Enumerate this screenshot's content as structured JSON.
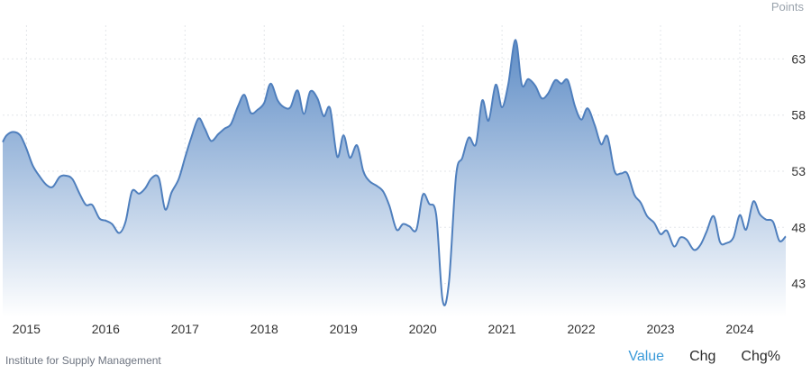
{
  "unit": "Points",
  "source": "Institute for Supply Management",
  "tabs": [
    {
      "label": "Value",
      "active": true
    },
    {
      "label": "Chg",
      "active": false
    },
    {
      "label": "Chg%",
      "active": false
    }
  ],
  "colors": {
    "line": "#4f7fbd",
    "fill_top": "#5f8dc6",
    "fill_bottom": "#ffffff",
    "grid": "#e3e6ea",
    "active_tab": "#3a9ad9"
  },
  "chart_data": {
    "type": "area",
    "title": "",
    "xlabel": "",
    "ylabel": "Points",
    "x_ticks": [
      "2015",
      "2016",
      "2017",
      "2018",
      "2019",
      "2020",
      "2021",
      "2022",
      "2023",
      "2024"
    ],
    "y_ticks": [
      43,
      48,
      53,
      58,
      63
    ],
    "xlim": [
      2014.7,
      2024.58
    ],
    "ylim": [
      40,
      66
    ],
    "grid": true,
    "series": [
      {
        "values": [
          [
            2014.7,
            55.6
          ],
          [
            2014.75,
            56.2
          ],
          [
            2014.83,
            56.5
          ],
          [
            2014.92,
            56.2
          ],
          [
            2015.0,
            55.0
          ],
          [
            2015.08,
            53.5
          ],
          [
            2015.17,
            52.5
          ],
          [
            2015.25,
            51.8
          ],
          [
            2015.33,
            51.6
          ],
          [
            2015.42,
            52.5
          ],
          [
            2015.5,
            52.6
          ],
          [
            2015.58,
            52.3
          ],
          [
            2015.67,
            51.0
          ],
          [
            2015.75,
            50.0
          ],
          [
            2015.83,
            50.0
          ],
          [
            2015.92,
            48.8
          ],
          [
            2016.0,
            48.6
          ],
          [
            2016.08,
            48.3
          ],
          [
            2016.17,
            47.5
          ],
          [
            2016.25,
            48.5
          ],
          [
            2016.33,
            51.2
          ],
          [
            2016.42,
            51.0
          ],
          [
            2016.5,
            51.5
          ],
          [
            2016.58,
            52.4
          ],
          [
            2016.67,
            52.4
          ],
          [
            2016.75,
            49.6
          ],
          [
            2016.83,
            51.1
          ],
          [
            2016.92,
            52.3
          ],
          [
            2017.0,
            54.2
          ],
          [
            2017.08,
            56.0
          ],
          [
            2017.17,
            57.7
          ],
          [
            2017.25,
            56.8
          ],
          [
            2017.33,
            55.7
          ],
          [
            2017.42,
            56.3
          ],
          [
            2017.5,
            56.8
          ],
          [
            2017.58,
            57.2
          ],
          [
            2017.67,
            58.8
          ],
          [
            2017.75,
            59.8
          ],
          [
            2017.83,
            58.2
          ],
          [
            2017.92,
            58.5
          ],
          [
            2018.0,
            59.1
          ],
          [
            2018.08,
            60.8
          ],
          [
            2018.17,
            59.3
          ],
          [
            2018.25,
            58.7
          ],
          [
            2018.33,
            58.7
          ],
          [
            2018.42,
            60.2
          ],
          [
            2018.5,
            58.1
          ],
          [
            2018.58,
            60.1
          ],
          [
            2018.67,
            59.5
          ],
          [
            2018.75,
            57.9
          ],
          [
            2018.83,
            58.6
          ],
          [
            2018.92,
            54.3
          ],
          [
            2019.0,
            56.2
          ],
          [
            2019.08,
            54.2
          ],
          [
            2019.17,
            55.3
          ],
          [
            2019.25,
            53.0
          ],
          [
            2019.33,
            52.1
          ],
          [
            2019.42,
            51.7
          ],
          [
            2019.5,
            51.2
          ],
          [
            2019.58,
            49.9
          ],
          [
            2019.67,
            47.8
          ],
          [
            2019.75,
            48.3
          ],
          [
            2019.83,
            48.1
          ],
          [
            2019.92,
            47.8
          ],
          [
            2020.0,
            50.9
          ],
          [
            2020.08,
            50.1
          ],
          [
            2020.17,
            49.1
          ],
          [
            2020.25,
            41.5
          ],
          [
            2020.33,
            43.1
          ],
          [
            2020.42,
            52.6
          ],
          [
            2020.5,
            54.2
          ],
          [
            2020.58,
            56.0
          ],
          [
            2020.67,
            55.4
          ],
          [
            2020.75,
            59.3
          ],
          [
            2020.83,
            57.5
          ],
          [
            2020.92,
            60.7
          ],
          [
            2021.0,
            58.7
          ],
          [
            2021.08,
            60.8
          ],
          [
            2021.17,
            64.7
          ],
          [
            2021.25,
            60.7
          ],
          [
            2021.33,
            61.2
          ],
          [
            2021.42,
            60.6
          ],
          [
            2021.5,
            59.5
          ],
          [
            2021.58,
            59.9
          ],
          [
            2021.67,
            61.1
          ],
          [
            2021.75,
            60.8
          ],
          [
            2021.83,
            61.1
          ],
          [
            2021.92,
            58.8
          ],
          [
            2022.0,
            57.6
          ],
          [
            2022.08,
            58.6
          ],
          [
            2022.17,
            57.1
          ],
          [
            2022.25,
            55.4
          ],
          [
            2022.33,
            56.1
          ],
          [
            2022.42,
            53.0
          ],
          [
            2022.5,
            52.8
          ],
          [
            2022.58,
            52.8
          ],
          [
            2022.67,
            50.9
          ],
          [
            2022.75,
            50.2
          ],
          [
            2022.83,
            49.0
          ],
          [
            2022.92,
            48.4
          ],
          [
            2023.0,
            47.4
          ],
          [
            2023.08,
            47.7
          ],
          [
            2023.17,
            46.3
          ],
          [
            2023.25,
            47.1
          ],
          [
            2023.33,
            46.9
          ],
          [
            2023.42,
            46.0
          ],
          [
            2023.5,
            46.4
          ],
          [
            2023.58,
            47.6
          ],
          [
            2023.67,
            49.0
          ],
          [
            2023.75,
            46.7
          ],
          [
            2023.83,
            46.6
          ],
          [
            2023.92,
            47.1
          ],
          [
            2024.0,
            49.1
          ],
          [
            2024.08,
            47.8
          ],
          [
            2024.17,
            50.3
          ],
          [
            2024.25,
            49.2
          ],
          [
            2024.33,
            48.7
          ],
          [
            2024.42,
            48.5
          ],
          [
            2024.5,
            46.8
          ],
          [
            2024.58,
            47.2
          ]
        ]
      }
    ]
  }
}
